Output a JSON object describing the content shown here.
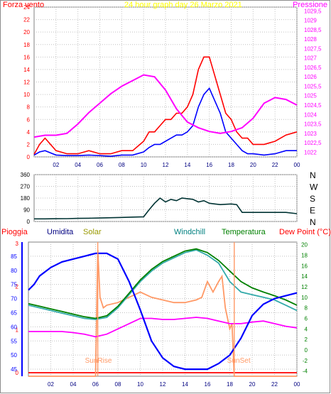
{
  "chart_data": [
    {
      "type": "line",
      "title": "24 hour graph day   26 Marzo 2021",
      "left_label": "Forza vento",
      "right_label": "Pressione",
      "x_ticks": [
        "02",
        "04",
        "06",
        "08",
        "10",
        "12",
        "14",
        "16",
        "18",
        "20",
        "22",
        "00"
      ],
      "y_left_ticks": [
        "0",
        "2",
        "4",
        "6",
        "8",
        "10",
        "12",
        "14",
        "16",
        "18",
        "20",
        "22",
        "24"
      ],
      "y_right_ticks": [
        "1022",
        "1022,5",
        "1023",
        "1023,5",
        "1024",
        "1024,5",
        "1025",
        "1025,5",
        "1026",
        "1026,5",
        "1027",
        "1027,5",
        "1028",
        "1028,5",
        "1029",
        "1029,5"
      ],
      "ylim_left": [
        0,
        24
      ],
      "ylim_right": [
        1021.75,
        1029.7
      ],
      "colors": {
        "gust": "#ff0000",
        "wind": "#0000ff",
        "pressure": "#ff00ff"
      },
      "series": [
        {
          "key": "gust",
          "x": [
            0,
            0.5,
            1,
            2,
            3,
            4,
            5,
            6,
            7,
            8,
            9,
            10,
            10.5,
            11,
            11.5,
            12,
            12.5,
            13,
            13.5,
            14,
            14.5,
            15,
            15.5,
            16,
            16.5,
            17,
            17.5,
            18,
            18.5,
            19,
            19.5,
            20,
            21,
            22,
            23,
            24
          ],
          "values": [
            0.4,
            2,
            3,
            1,
            0.5,
            0.5,
            1,
            0.5,
            0.5,
            1,
            1,
            2.5,
            4,
            4,
            5,
            6,
            6,
            7,
            7,
            8,
            10,
            14,
            16,
            16,
            13,
            10,
            7,
            6,
            4,
            3,
            3,
            2,
            2,
            2.5,
            3.5,
            4
          ]
        },
        {
          "key": "wind",
          "x": [
            0,
            0.5,
            1,
            2,
            3,
            4,
            5,
            6,
            7,
            8,
            9,
            10,
            10.5,
            11,
            11.5,
            12,
            12.5,
            13,
            13.5,
            14,
            14.5,
            15,
            15.5,
            16,
            16.5,
            17,
            17.5,
            18,
            18.5,
            19,
            19.5,
            20,
            21,
            22,
            23,
            24
          ],
          "values": [
            0.3,
            0.8,
            1,
            0.3,
            0.2,
            0.2,
            0.3,
            0.2,
            0.1,
            0.3,
            0.3,
            0.8,
            1.5,
            2,
            2,
            2.5,
            3,
            3.5,
            3.5,
            4,
            5,
            8,
            10,
            11,
            9,
            7,
            4,
            3,
            2,
            1,
            0.5,
            0.5,
            0.3,
            0.5,
            1,
            1
          ]
        },
        {
          "key": "pressure",
          "x": [
            0,
            1,
            2,
            3,
            4,
            5,
            6,
            7,
            8,
            9,
            10,
            11,
            12,
            13,
            14,
            15,
            16,
            17,
            18,
            19,
            20,
            21,
            22,
            23,
            24
          ],
          "values": [
            1022.8,
            1022.9,
            1022.9,
            1023.0,
            1023.5,
            1024.1,
            1024.6,
            1025.1,
            1025.5,
            1025.8,
            1026.1,
            1026.0,
            1025.3,
            1024.3,
            1023.6,
            1023.3,
            1023.1,
            1023.0,
            1023.1,
            1023.3,
            1023.8,
            1024.6,
            1024.9,
            1024.8,
            1024.5
          ]
        }
      ]
    },
    {
      "type": "line",
      "title": "",
      "y_ticks": [
        "0",
        "90",
        "180",
        "270",
        "360"
      ],
      "dir_labels": [
        "N",
        "W",
        "S",
        "E",
        "N"
      ],
      "ylim": [
        0,
        360
      ],
      "color": "#003333",
      "series": [
        {
          "name": "",
          "x": [
            0,
            1,
            2,
            3,
            4,
            5,
            6,
            7,
            8,
            9,
            10,
            10.5,
            11,
            11.5,
            12,
            12.5,
            13,
            13.5,
            14,
            14.5,
            15,
            15.5,
            16,
            16.5,
            17,
            18,
            18.5,
            19,
            20,
            21,
            22,
            23,
            24
          ],
          "values": [
            20,
            20,
            21,
            22,
            24,
            25,
            27,
            29,
            31,
            34,
            36,
            90,
            140,
            180,
            150,
            170,
            160,
            180,
            175,
            170,
            150,
            160,
            140,
            135,
            130,
            135,
            130,
            70,
            70,
            70,
            70,
            70,
            60
          ]
        }
      ]
    },
    {
      "type": "line",
      "legend": [
        "Pioggia",
        "Umidita",
        "Solar",
        "Windchill",
        "Temperatura",
        "Dew Point (°C)"
      ],
      "left_label": "Pioggia",
      "y_rain_ticks": [
        "0",
        "1",
        "2",
        "3"
      ],
      "y_left_ticks": [
        "45",
        "50",
        "55",
        "60",
        "65",
        "70",
        "75",
        "80",
        "85"
      ],
      "y_right_ticks": [
        "-4",
        "-2",
        "0",
        "2",
        "4",
        "6",
        "8",
        "10",
        "12",
        "14",
        "16",
        "18",
        "20"
      ],
      "ylim_left": [
        42.5,
        90
      ],
      "ylim_right": [
        -5,
        20.5
      ],
      "annotations": {
        "sunrise": "SunRise",
        "sunset": "SunSet"
      },
      "sunrise_x": 6.2,
      "sunset_x": 18.4,
      "colors": {
        "rain": "#ff0000",
        "humidity": "#0000ff",
        "solar": "#ff9966",
        "windchill": "#33aaaa",
        "temperature": "#008000",
        "dewpoint": "#ff00ff",
        "sun": "#ff9966"
      },
      "series": [
        {
          "key": "humidity",
          "axis": "left",
          "x": [
            0,
            0.5,
            1,
            2,
            3,
            4,
            5,
            6,
            7,
            8,
            9,
            10,
            11,
            12,
            13,
            14,
            15,
            16,
            17,
            18,
            19,
            20,
            21,
            22,
            23,
            24
          ],
          "values": [
            73,
            75,
            78,
            81,
            83,
            84,
            85,
            86,
            86,
            84,
            76,
            66,
            55,
            49,
            46,
            45,
            45,
            45,
            47,
            50,
            56,
            64,
            68,
            70,
            71,
            72
          ]
        },
        {
          "key": "windchill",
          "axis": "right",
          "x": [
            0,
            1,
            2,
            3,
            4,
            5,
            6,
            7,
            8,
            9,
            10,
            11,
            12,
            13,
            14,
            15,
            16,
            17,
            18,
            19,
            20,
            21,
            22,
            23,
            24
          ],
          "values": [
            8.5,
            8,
            7.5,
            7,
            6.5,
            6,
            5.8,
            6.2,
            8,
            10.5,
            13,
            15,
            16.5,
            17.5,
            18.5,
            19,
            18,
            16.5,
            13,
            11,
            10.5,
            10,
            9.5,
            8.5,
            7.5
          ]
        },
        {
          "key": "temperature",
          "axis": "right",
          "x": [
            0,
            1,
            2,
            3,
            4,
            5,
            6,
            7,
            8,
            9,
            10,
            11,
            12,
            13,
            14,
            15,
            16,
            17,
            18,
            19,
            20,
            21,
            22,
            23,
            24
          ],
          "values": [
            8.8,
            8.3,
            7.8,
            7.3,
            6.8,
            6.3,
            6,
            6.5,
            8.3,
            10.8,
            13.3,
            15.3,
            16.8,
            17.8,
            18.8,
            19.2,
            18.5,
            17,
            15,
            13,
            11.8,
            11,
            10.3,
            9.5,
            8.5
          ]
        },
        {
          "key": "dewpoint",
          "axis": "right",
          "x": [
            0,
            1,
            2,
            3,
            4,
            5,
            6,
            7,
            8,
            9,
            10,
            11,
            12,
            13,
            14,
            15,
            16,
            17,
            18,
            19,
            20,
            21,
            22,
            23,
            24
          ],
          "values": [
            3.5,
            3.5,
            3.5,
            3.5,
            3.3,
            3,
            2.5,
            3,
            4,
            5,
            6,
            6,
            5.8,
            5.8,
            6,
            6.2,
            6,
            5.5,
            5,
            5,
            5.3,
            5.5,
            5,
            4.5,
            4.2
          ]
        },
        {
          "key": "solar",
          "axis": "right",
          "x": [
            0,
            6,
            6.2,
            6.4,
            6.7,
            7,
            8,
            9,
            10,
            11,
            12,
            13,
            14,
            15,
            15.5,
            16,
            16.5,
            17,
            17.3,
            17.6,
            18,
            18.2,
            18.4,
            24
          ],
          "values": [
            -5,
            -5,
            19,
            10,
            8,
            8.5,
            9,
            10,
            11,
            10,
            9.5,
            9,
            9,
            9.5,
            10,
            13,
            11,
            13,
            14,
            8,
            4,
            5,
            -5,
            -5
          ]
        },
        {
          "key": "rain",
          "axis": "rain",
          "x": [
            0,
            24
          ],
          "values": [
            0,
            0
          ]
        }
      ]
    }
  ]
}
